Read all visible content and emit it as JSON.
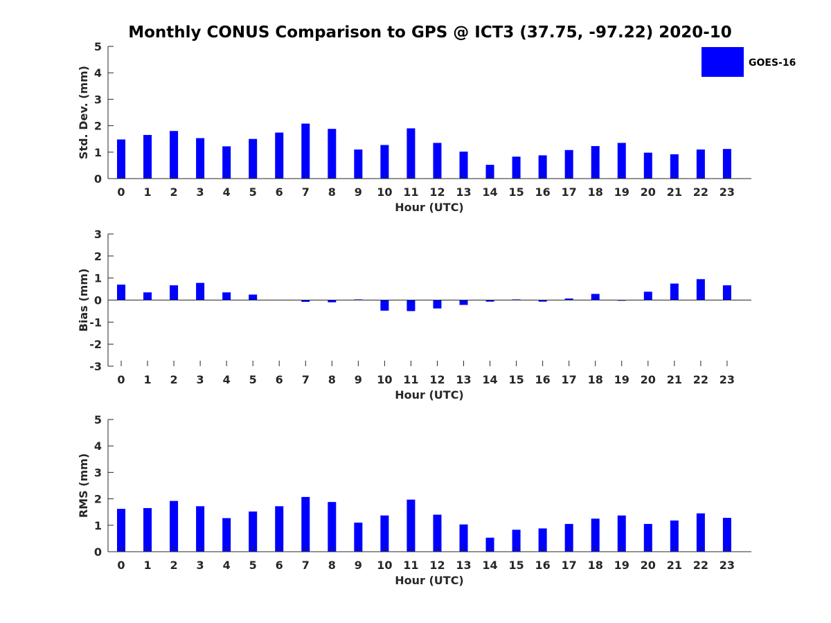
{
  "chart_data": {
    "title": "Monthly CONUS Comparison to GPS @ ICT3 (37.75, -97.22) 2020-10",
    "type": "bar",
    "legend": {
      "label": "GOES-16",
      "color": "#0000ff",
      "position": "top-right"
    },
    "categories": [
      "0",
      "1",
      "2",
      "3",
      "4",
      "5",
      "6",
      "7",
      "8",
      "9",
      "10",
      "11",
      "12",
      "13",
      "14",
      "15",
      "16",
      "17",
      "18",
      "19",
      "20",
      "21",
      "22",
      "23"
    ],
    "panels": [
      {
        "id": "stddev",
        "ylabel": "Std. Dev. (mm)",
        "xlabel": "Hour (UTC)",
        "ylim": [
          0,
          5
        ],
        "yticks": [
          "0",
          "1",
          "2",
          "3",
          "4",
          "5"
        ],
        "series": [
          {
            "name": "GOES-16",
            "values": [
              1.48,
              1.65,
              1.8,
              1.53,
              1.22,
              1.5,
              1.74,
              2.08,
              1.88,
              1.1,
              1.27,
              1.9,
              1.35,
              1.02,
              0.52,
              0.83,
              0.88,
              1.08,
              1.23,
              1.35,
              0.98,
              0.92,
              1.1,
              1.12
            ]
          }
        ]
      },
      {
        "id": "bias",
        "ylabel": "Bias (mm)",
        "xlabel": "Hour (UTC)",
        "ylim": [
          -3,
          3
        ],
        "yticks": [
          "-3",
          "-2",
          "-1",
          "0",
          "1",
          "2",
          "3"
        ],
        "series": [
          {
            "name": "GOES-16",
            "values": [
              0.7,
              0.35,
              0.67,
              0.78,
              0.35,
              0.25,
              0.0,
              -0.08,
              -0.1,
              0.03,
              -0.48,
              -0.5,
              -0.38,
              -0.22,
              -0.07,
              0.03,
              -0.07,
              0.07,
              0.28,
              -0.03,
              0.38,
              0.75,
              0.95,
              0.67
            ]
          }
        ]
      },
      {
        "id": "rms",
        "ylabel": "RMS (mm)",
        "xlabel": "Hour (UTC)",
        "ylim": [
          0,
          5
        ],
        "yticks": [
          "0",
          "1",
          "2",
          "3",
          "4",
          "5"
        ],
        "series": [
          {
            "name": "GOES-16",
            "values": [
              1.62,
              1.65,
              1.92,
              1.72,
              1.27,
              1.52,
              1.72,
              2.07,
              1.88,
              1.1,
              1.37,
              1.97,
              1.4,
              1.03,
              0.53,
              0.83,
              0.88,
              1.05,
              1.25,
              1.37,
              1.05,
              1.18,
              1.45,
              1.28
            ]
          }
        ]
      }
    ]
  }
}
